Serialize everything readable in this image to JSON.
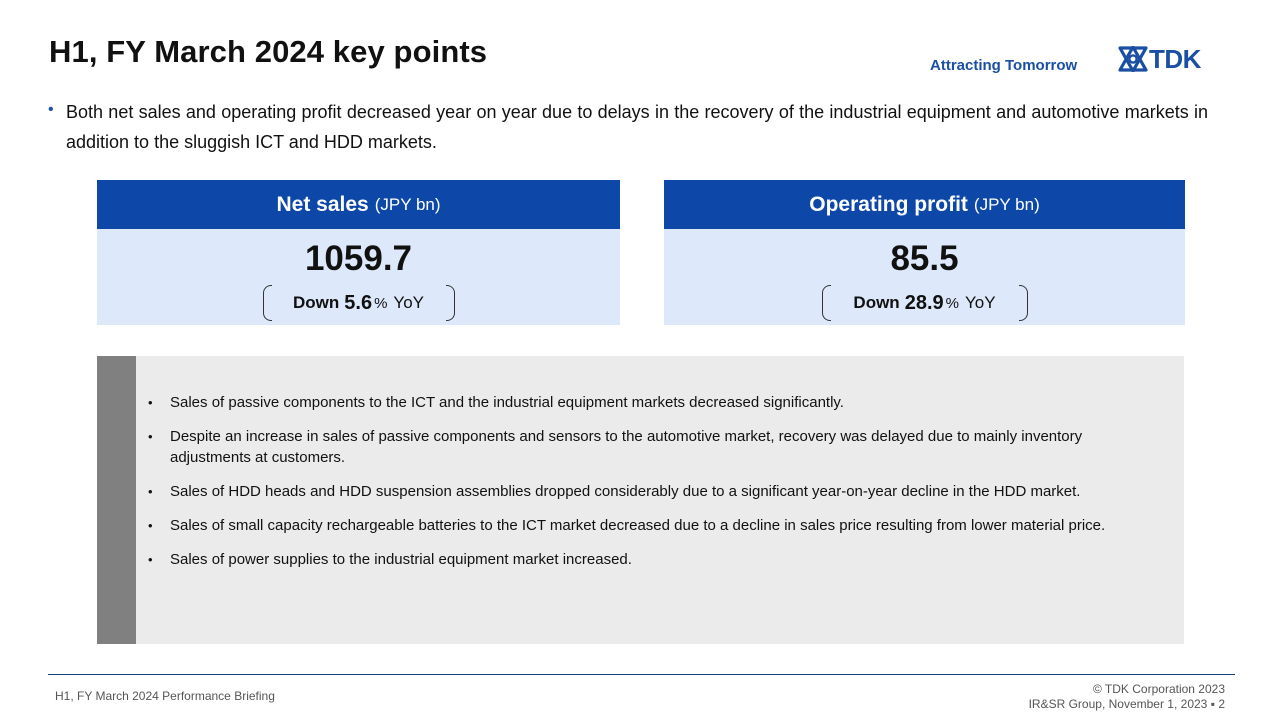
{
  "header": {
    "title": "H1, FY March 2024 key points",
    "tagline": "Attracting Tomorrow",
    "logo_text": "TDK",
    "brand_color": "#1a4fa3"
  },
  "intro": {
    "bullet": "•",
    "text": "Both net sales and operating profit decreased year on year due to delays in the recovery of the industrial equipment and automotive markets in addition to the sluggish ICT and HDD markets."
  },
  "kpis": [
    {
      "title": "Net sales",
      "unit": "(JPY bn)",
      "value": "1059.7",
      "change_word": "Down",
      "change_value": "5.6",
      "change_unit": "%",
      "change_suffix": "YoY"
    },
    {
      "title": "Operating profit",
      "unit": "(JPY bn)",
      "value": "85.5",
      "change_word": "Down",
      "change_value": "28.9",
      "change_unit": "%",
      "change_suffix": "YoY"
    }
  ],
  "details": {
    "bullet": "•",
    "items": [
      "Sales of passive components to the ICT and the industrial equipment markets decreased significantly.",
      "Despite an increase in sales of passive components and sensors to the automotive market, recovery was delayed due to mainly inventory adjustments at customers.",
      "Sales of HDD heads and HDD suspension assemblies dropped considerably due to a significant year-on-year decline in the HDD market.",
      "Sales of small capacity rechargeable batteries to the ICT market decreased due to a decline in sales price resulting from lower material price.",
      "Sales of power supplies to the industrial equipment market increased."
    ]
  },
  "footer": {
    "left": "H1, FY March 2024 Performance Briefing",
    "copyright": "© TDK Corporation 2023",
    "group_date": "IR&SR Group, November 1, 2023",
    "page_sep": "▪",
    "page_number": "2"
  }
}
